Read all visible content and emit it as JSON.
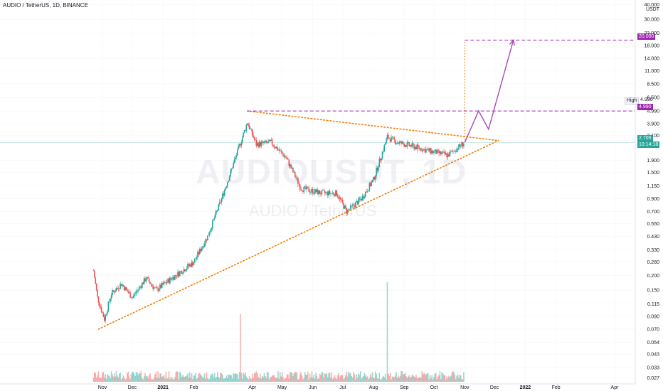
{
  "header": {
    "pair_label": "AUDIO / TetherUS, 1D, BINANCE"
  },
  "watermark": {
    "symbol": "AUDIOUSDT, 1D",
    "name": "AUDIO / TetherUS"
  },
  "price_axis": {
    "currency": "USDT",
    "ticks": [
      "40.000",
      "30.000",
      "23.000",
      "18.000",
      "14.000",
      "11.000",
      "8.500",
      "6.500",
      "4.990",
      "3.900",
      "3.100",
      "1.900",
      "1.500",
      "1.150",
      "0.900",
      "0.700",
      "0.550",
      "0.430",
      "0.330",
      "0.260",
      "0.200",
      "0.150",
      "0.115",
      "0.090",
      "0.070",
      "0.054",
      "0.043",
      "0.033",
      "0.027"
    ],
    "tick_values": [
      40,
      30,
      23,
      18,
      14,
      11,
      8.5,
      6.5,
      4.99,
      3.9,
      3.1,
      1.9,
      1.5,
      1.15,
      0.9,
      0.7,
      0.55,
      0.43,
      0.33,
      0.26,
      0.2,
      0.15,
      0.115,
      0.09,
      0.07,
      0.054,
      0.043,
      0.033,
      0.027
    ]
  },
  "time_axis": {
    "labels": [
      "Nov",
      "Dec",
      "2021",
      "Feb",
      "Apr",
      "May",
      "Jun",
      "Jul",
      "Aug",
      "Sep",
      "Oct",
      "Nov",
      "Dec",
      "2022",
      "Feb",
      "Apr"
    ]
  },
  "price_labels": {
    "target": {
      "value": "20.000",
      "color": "#9c27b0"
    },
    "high": {
      "label": "High",
      "value": "4.990",
      "color": "#9c27b0"
    },
    "current": {
      "value": "2.705",
      "countdown": "10:14:18",
      "color": "#26a69a"
    }
  },
  "colors": {
    "up": "#26a69a",
    "down": "#ef5350",
    "triangle": "#f57c00",
    "projection": "#ab47bc",
    "level": "#9c27b0"
  },
  "chart_data": {
    "type": "candlestick",
    "title": "AUDIO / TetherUS, 1D, BINANCE",
    "scale": "log",
    "ylim": [
      0.025,
      42
    ],
    "close_path": [
      {
        "date": "2020-10-23",
        "price": 0.22
      },
      {
        "date": "2020-10-27",
        "price": 0.13
      },
      {
        "date": "2020-11-03",
        "price": 0.085
      },
      {
        "date": "2020-11-10",
        "price": 0.14
      },
      {
        "date": "2020-11-20",
        "price": 0.17
      },
      {
        "date": "2020-12-01",
        "price": 0.13
      },
      {
        "date": "2020-12-15",
        "price": 0.19
      },
      {
        "date": "2020-12-25",
        "price": 0.15
      },
      {
        "date": "2021-01-10",
        "price": 0.19
      },
      {
        "date": "2021-02-01",
        "price": 0.26
      },
      {
        "date": "2021-02-15",
        "price": 0.43
      },
      {
        "date": "2021-03-01",
        "price": 0.9
      },
      {
        "date": "2021-03-10",
        "price": 1.5
      },
      {
        "date": "2021-03-27",
        "price": 4.0
      },
      {
        "date": "2021-04-05",
        "price": 2.6
      },
      {
        "date": "2021-04-20",
        "price": 2.7
      },
      {
        "date": "2021-05-05",
        "price": 2.0
      },
      {
        "date": "2021-05-20",
        "price": 1.1
      },
      {
        "date": "2021-06-10",
        "price": 1.0
      },
      {
        "date": "2021-06-25",
        "price": 1.0
      },
      {
        "date": "2021-07-05",
        "price": 0.7
      },
      {
        "date": "2021-07-20",
        "price": 0.9
      },
      {
        "date": "2021-08-01",
        "price": 1.3
      },
      {
        "date": "2021-08-15",
        "price": 3.0
      },
      {
        "date": "2021-08-25",
        "price": 2.7
      },
      {
        "date": "2021-09-10",
        "price": 2.5
      },
      {
        "date": "2021-09-25",
        "price": 2.3
      },
      {
        "date": "2021-10-15",
        "price": 2.1
      },
      {
        "date": "2021-11-01",
        "price": 2.705
      }
    ],
    "volume_spikes": [
      {
        "date": "2021-03-20",
        "note": "high"
      },
      {
        "date": "2021-08-15",
        "note": "highest"
      }
    ],
    "drawings": {
      "triangle_resistance": {
        "from": {
          "date": "2021-03-27",
          "price": 4.99
        },
        "to": {
          "date": "2021-12-05",
          "price": 2.8
        }
      },
      "triangle_support": {
        "from": {
          "date": "2020-10-28",
          "price": 0.07
        },
        "to": {
          "date": "2021-12-05",
          "price": 2.8
        }
      },
      "high_level": 4.99,
      "target_level": 20.0,
      "projection": [
        {
          "date": "2021-11-01",
          "price": 2.7
        },
        {
          "date": "2021-11-15",
          "price": 5.0
        },
        {
          "date": "2021-11-25",
          "price": 3.5
        },
        {
          "date": "2021-12-20",
          "price": 20.0
        }
      ]
    }
  }
}
